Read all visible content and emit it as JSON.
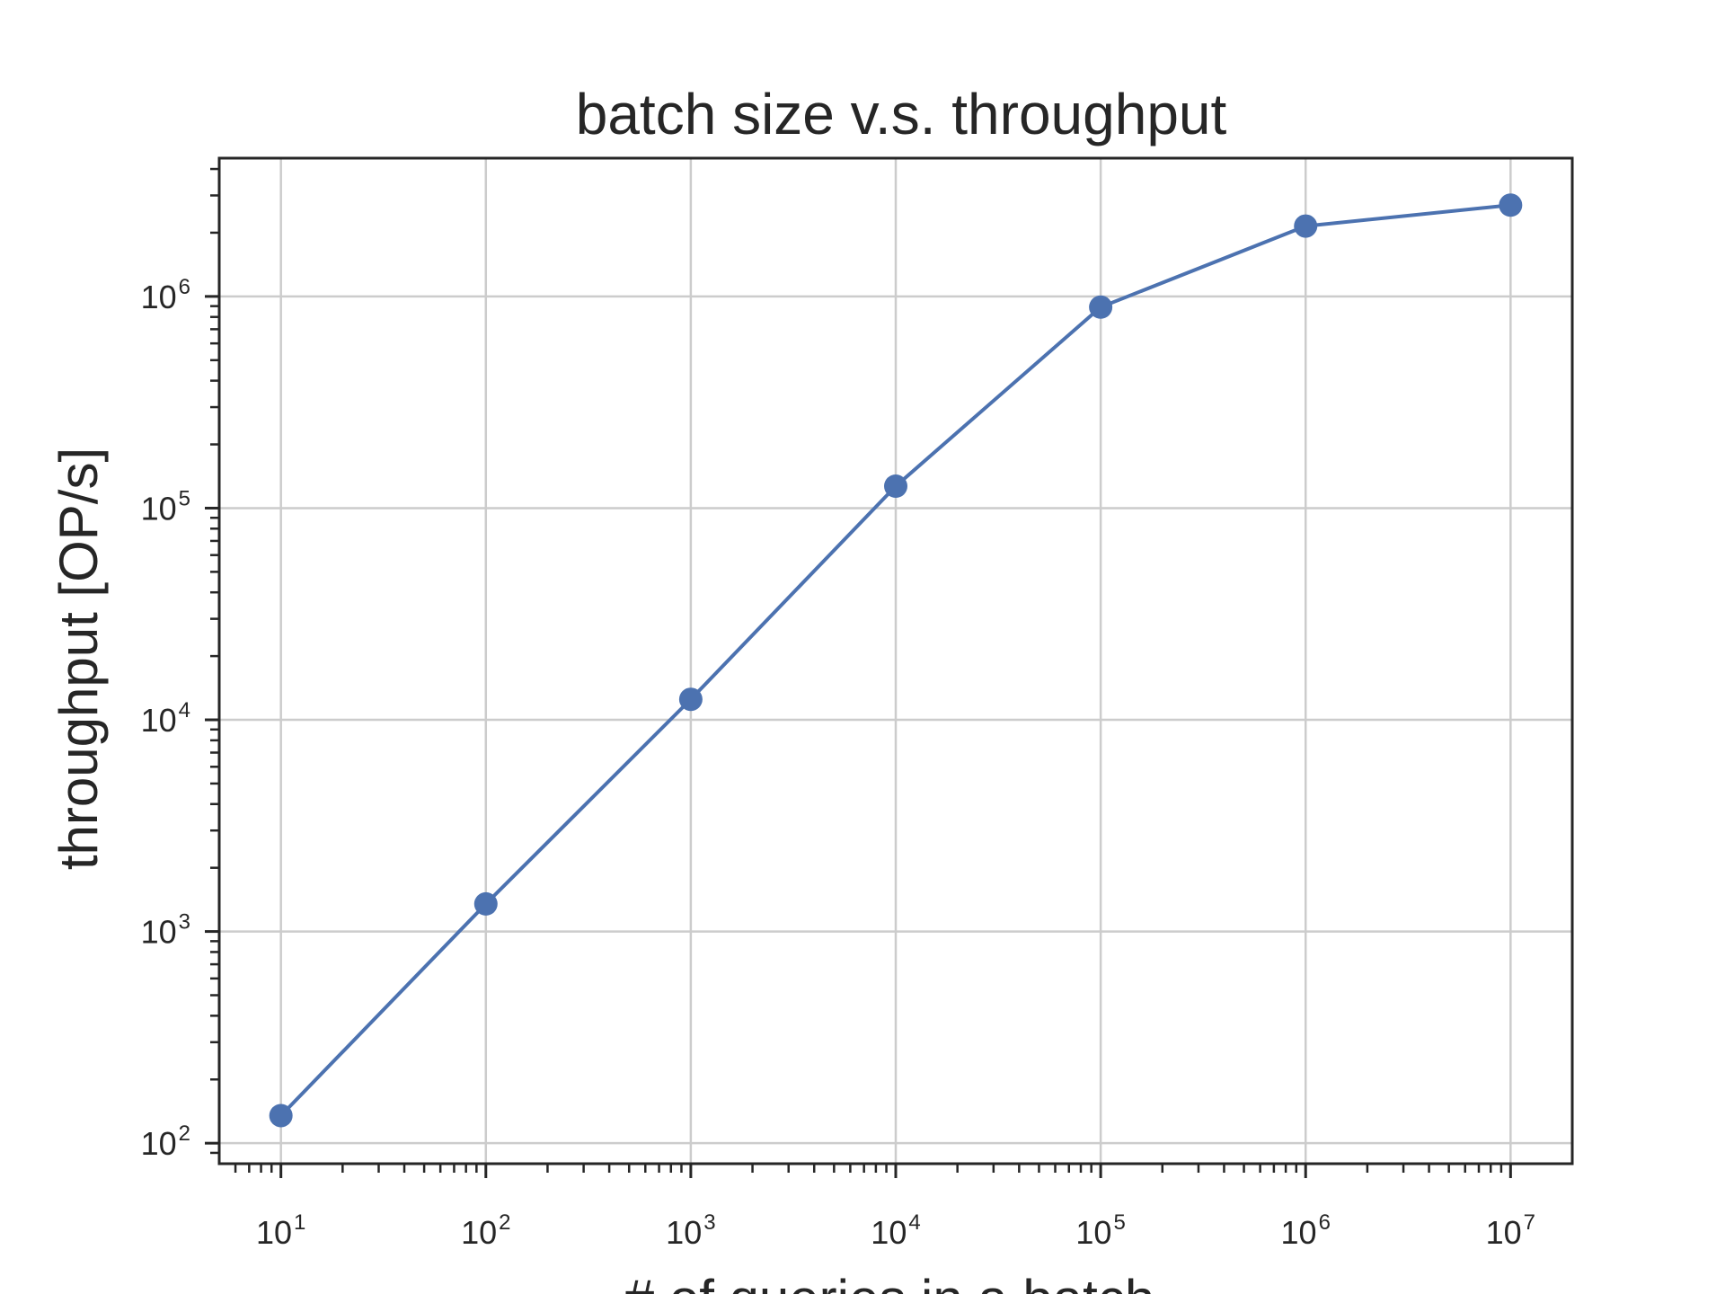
{
  "chart_data": {
    "type": "line",
    "title": "batch size v.s. throughput",
    "xlabel": "# of queries in a batch",
    "ylabel": "throughput [OP/s]",
    "xscale": "log",
    "yscale": "log",
    "xlim": [
      5,
      20000000
    ],
    "ylim": [
      80,
      4500000
    ],
    "grid": true,
    "x_ticks": [
      {
        "base": "10",
        "exp": "1",
        "value": 10
      },
      {
        "base": "10",
        "exp": "2",
        "value": 100
      },
      {
        "base": "10",
        "exp": "3",
        "value": 1000
      },
      {
        "base": "10",
        "exp": "4",
        "value": 10000
      },
      {
        "base": "10",
        "exp": "5",
        "value": 100000
      },
      {
        "base": "10",
        "exp": "6",
        "value": 1000000
      },
      {
        "base": "10",
        "exp": "7",
        "value": 10000000
      }
    ],
    "y_ticks": [
      {
        "base": "10",
        "exp": "2",
        "value": 100
      },
      {
        "base": "10",
        "exp": "3",
        "value": 1000
      },
      {
        "base": "10",
        "exp": "4",
        "value": 10000
      },
      {
        "base": "10",
        "exp": "5",
        "value": 100000
      },
      {
        "base": "10",
        "exp": "6",
        "value": 1000000
      }
    ],
    "series": [
      {
        "color": "#4c72b0",
        "x": [
          10,
          100,
          1000,
          10000,
          100000,
          1000000,
          10000000
        ],
        "y": [
          135,
          1350,
          12500,
          127000,
          890000,
          2150000,
          2700000
        ]
      }
    ]
  }
}
